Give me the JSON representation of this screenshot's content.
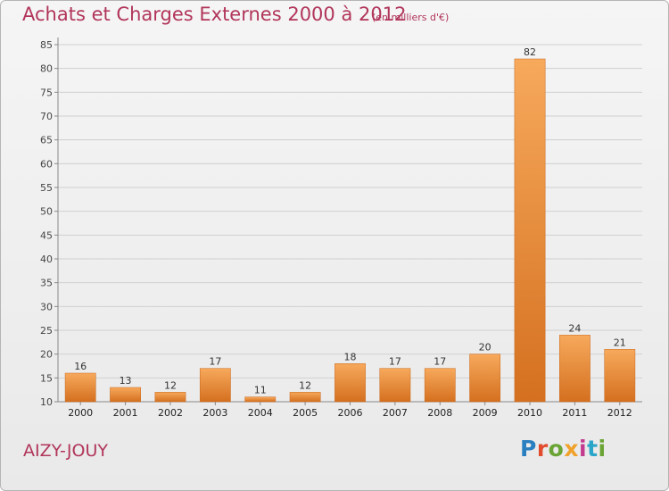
{
  "chart_data": {
    "type": "bar",
    "title": "Achats et Charges Externes 2000 à 2012",
    "subtitle": "(en milliers d'€)",
    "categories": [
      "2000",
      "2001",
      "2002",
      "2003",
      "2004",
      "2005",
      "2006",
      "2007",
      "2008",
      "2009",
      "2010",
      "2011",
      "2012"
    ],
    "values": [
      16,
      13,
      12,
      17,
      11,
      12,
      18,
      17,
      17,
      20,
      82,
      24,
      21
    ],
    "ylim": [
      10,
      85
    ],
    "yticks": [
      10,
      15,
      20,
      25,
      30,
      35,
      40,
      45,
      50,
      55,
      60,
      65,
      70,
      75,
      80,
      85
    ],
    "grid": true,
    "bar_color_light": "#f7a95c",
    "bar_color_dark": "#d4701f"
  },
  "commune": "AIZY-JOUY",
  "logo": {
    "letters": [
      "P",
      "r",
      "o",
      "x",
      "i",
      "t",
      "i"
    ]
  }
}
